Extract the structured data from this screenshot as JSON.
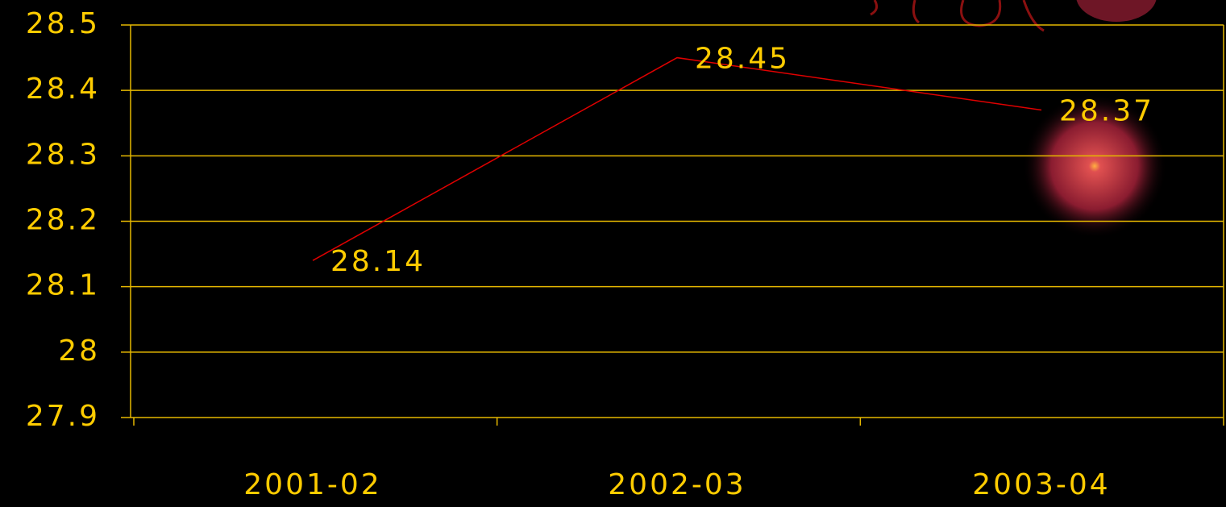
{
  "chart_data": {
    "type": "line",
    "categories": [
      "2001-02",
      "2002-03",
      "2003-04"
    ],
    "values": [
      28.14,
      28.45,
      28.37
    ],
    "color": "#e00000",
    "ylim": [
      27.9,
      28.5
    ],
    "yticks": [
      27.9,
      28,
      28.1,
      28.2,
      28.3,
      28.4,
      28.5
    ],
    "grid": true
  }
}
